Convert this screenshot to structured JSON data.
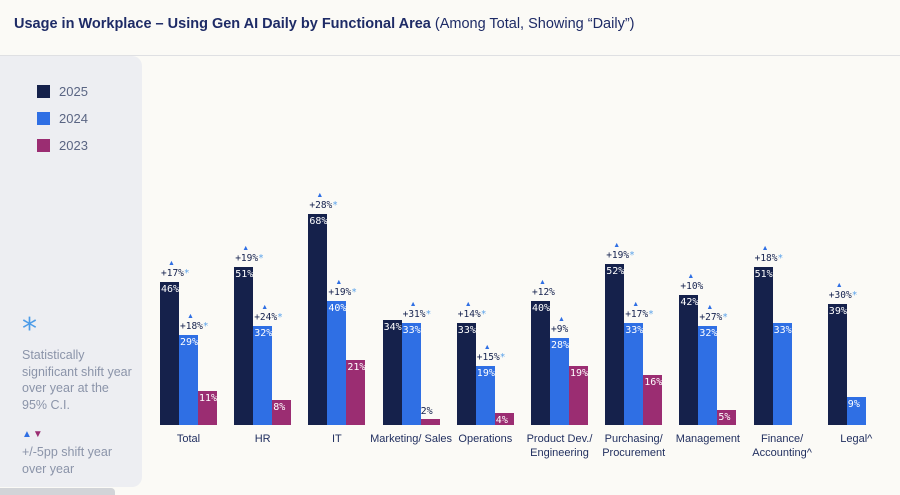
{
  "title": {
    "bold": "Usage in Workplace – Using Gen AI Daily by Functional Area",
    "regular": " (Among Total, Showing “Daily”)"
  },
  "legend": {
    "items": [
      {
        "label": "2025",
        "color": "#15214b"
      },
      {
        "label": "2024",
        "color": "#2f6fe4"
      },
      {
        "label": "2023",
        "color": "#9b2d72"
      }
    ]
  },
  "notes": {
    "significance": {
      "symbol": "*",
      "text": "Statistically significant shift year over year at the 95% C.I."
    },
    "shift": {
      "up_symbol": "▲",
      "down_symbol": "▼",
      "text": "+/-5pp shift year over year"
    }
  },
  "chart_data": {
    "type": "bar",
    "title": "Usage in Workplace – Using Gen AI Daily by Functional Area (Among Total, Showing “Daily”)",
    "unit": "%",
    "grid": false,
    "legend_position": "left",
    "value_label_format": "{v}%",
    "ylim": [
      0,
      70
    ],
    "categories": [
      "Total",
      "HR",
      "IT",
      "Marketing/ Sales",
      "Operations",
      "Product Dev./\nEngineering",
      "Purchasing/\nProcurement",
      "Management",
      "Finance/\nAccounting^",
      "Legal^"
    ],
    "series": [
      {
        "name": "2025",
        "color": "#15214b",
        "values": [
          46,
          51,
          68,
          34,
          33,
          40,
          52,
          42,
          51,
          39
        ],
        "shift_labels": [
          "+17%*",
          "+19%*",
          "+28%*",
          null,
          "+14%*",
          "+12%",
          "+19%*",
          "+10%",
          "+18%*",
          "+30%*"
        ]
      },
      {
        "name": "2024",
        "color": "#2f6fe4",
        "values": [
          29,
          32,
          40,
          33,
          19,
          28,
          33,
          32,
          33,
          9
        ],
        "shift_labels": [
          "+18%*",
          "+24%*",
          "+19%*",
          "+31%*",
          "+15%*",
          "+9%",
          "+17%*",
          "+27%*",
          null,
          null
        ]
      },
      {
        "name": "2023",
        "color": "#9b2d72",
        "values": [
          11,
          8,
          21,
          2,
          4,
          19,
          16,
          5,
          null,
          null
        ],
        "shift_labels": [
          null,
          null,
          null,
          null,
          null,
          null,
          null,
          null,
          null,
          null
        ]
      }
    ]
  }
}
